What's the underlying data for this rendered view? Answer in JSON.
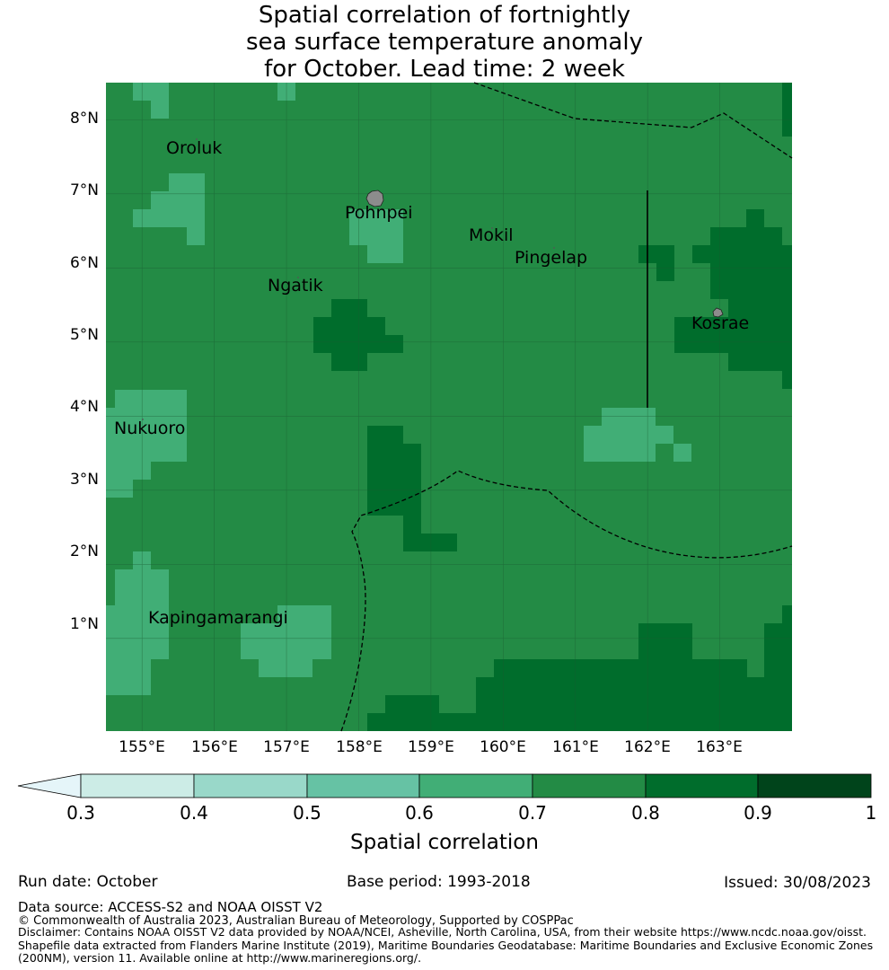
{
  "title": {
    "line1": "Spatial correlation of fortnightly",
    "line2": "sea surface temperature anomaly",
    "line3": "for October. Lead time: 2 week"
  },
  "axes": {
    "lon_ticks": [
      "155°E",
      "156°E",
      "157°E",
      "158°E",
      "159°E",
      "160°E",
      "161°E",
      "162°E",
      "163°E"
    ],
    "lon_values": [
      155,
      156,
      157,
      158,
      159,
      160,
      161,
      162,
      163
    ],
    "lat_ticks": [
      "1°N",
      "2°N",
      "3°N",
      "4°N",
      "5°N",
      "6°N",
      "7°N",
      "8°N"
    ],
    "lat_values": [
      1,
      2,
      3,
      4,
      5,
      6,
      7,
      8
    ],
    "lon_range": [
      154.5,
      164.0
    ],
    "lat_range": [
      -0.25,
      8.5
    ]
  },
  "places": [
    {
      "name": "Oroluk",
      "lon": 155.3,
      "lat": 7.6
    },
    {
      "name": "Pohnpei",
      "lon": 157.8,
      "lat": 6.8
    },
    {
      "name": "Mokil",
      "lon": 159.55,
      "lat": 6.35
    },
    {
      "name": "Pingelap",
      "lon": 160.15,
      "lat": 6.05
    },
    {
      "name": "Ngatik",
      "lon": 156.7,
      "lat": 5.65
    },
    {
      "name": "Kosrae",
      "lon": 162.6,
      "lat": 5.15
    },
    {
      "name": "Nukuoro",
      "lon": 154.6,
      "lat": 3.65
    },
    {
      "name": "Kapingamarangi",
      "lon": 155.05,
      "lat": 1.05
    }
  ],
  "colorbar": {
    "ticks": [
      "0.3",
      "0.4",
      "0.5",
      "0.6",
      "0.7",
      "0.8",
      "0.9",
      "1"
    ],
    "colors": [
      "#e5f5f9",
      "#ccece6",
      "#99d8c9",
      "#66c2a4",
      "#41ae76",
      "#238b45",
      "#006d2c",
      "#00441b"
    ],
    "label": "Spatial correlation"
  },
  "footer": {
    "run_date": "Run date: October",
    "base_period": "Base period: 1993-2018",
    "issued": "Issued: 30/08/2023",
    "data_source": "Data source: ACCESS-S2 and NOAA OISST V2",
    "copyright": "© Commonwealth of Australia 2023, Australian Bureau of Meteorology, Supported by COSPPac",
    "disclaimer": "Disclaimer: Contains NOAA OISST V2 data provided by NOAA/NCEI, Asheville, North Carolina, USA, from their website https://www.ncdc.noaa.gov/oisst. Shapefile data extracted from Flanders Marine Institute (2019), Maritime Boundaries Geodatabase: Maritime Boundaries and Exclusive Economic Zones (200NM), version 11. Available online at http://www.marineregions.org/."
  }
}
